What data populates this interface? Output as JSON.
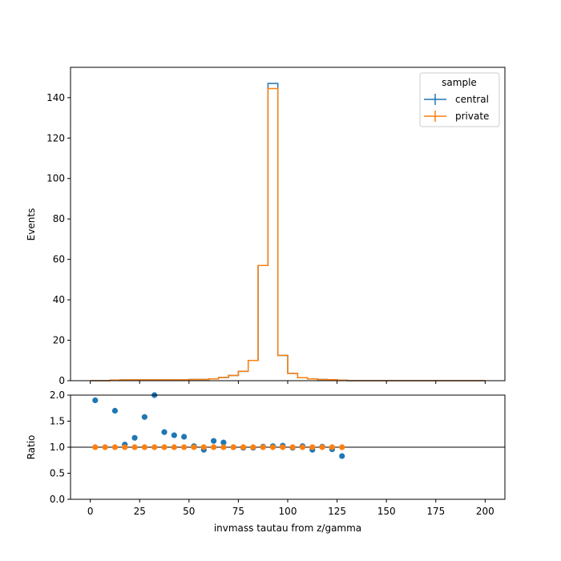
{
  "chart_data": [
    {
      "type": "step",
      "xlabel": "",
      "ylabel": "Events",
      "xlim": [
        -10,
        210
      ],
      "ylim": [
        0,
        155
      ],
      "yticks": [
        0,
        20,
        40,
        60,
        80,
        100,
        120,
        140
      ],
      "xticks": [
        0,
        25,
        50,
        75,
        100,
        125,
        150,
        175,
        200
      ],
      "bin_edges": [
        0,
        5,
        10,
        15,
        20,
        25,
        30,
        35,
        40,
        45,
        50,
        55,
        60,
        65,
        70,
        75,
        80,
        85,
        90,
        95,
        100,
        105,
        110,
        115,
        120,
        125,
        130,
        135,
        140,
        145,
        150,
        155,
        160,
        165,
        170,
        175,
        180,
        185,
        190,
        195,
        200
      ],
      "legend": {
        "title": "sample",
        "placement": "top-right"
      },
      "series": [
        {
          "name": "central",
          "color": "#1f77b4",
          "values": [
            0,
            0,
            0.3,
            0.4,
            0.4,
            0.4,
            0.4,
            0.4,
            0.4,
            0.4,
            0.6,
            0.6,
            0.9,
            1.6,
            2.6,
            4.6,
            10,
            57,
            147,
            12.5,
            3.6,
            1.5,
            0.9,
            0.6,
            0.5,
            0.2,
            0,
            0,
            0,
            0,
            0,
            0,
            0,
            0,
            0,
            0,
            0,
            0,
            0,
            0
          ]
        },
        {
          "name": "private",
          "color": "#ff7f0e",
          "values": [
            0,
            0,
            0.3,
            0.4,
            0.4,
            0.4,
            0.4,
            0.4,
            0.4,
            0.4,
            0.6,
            0.6,
            0.9,
            1.6,
            2.6,
            4.6,
            10,
            57,
            144.5,
            12.5,
            3.6,
            1.5,
            0.9,
            0.6,
            0.5,
            0.2,
            0,
            0,
            0,
            0,
            0,
            0,
            0,
            0,
            0,
            0,
            0,
            0,
            0,
            0
          ]
        }
      ]
    },
    {
      "type": "scatter",
      "xlabel": "invmass tautau from z/gamma",
      "ylabel": "Ratio",
      "xlim": [
        -10,
        210
      ],
      "ylim": [
        0,
        2
      ],
      "yticks": [
        "0.0",
        "0.5",
        "1.0",
        "1.5",
        "2.0"
      ],
      "xticks": [
        0,
        25,
        50,
        75,
        100,
        125,
        150,
        175,
        200
      ],
      "reference_line": 1.0,
      "series": [
        {
          "name": "central",
          "color": "#1f77b4",
          "x": [
            2.5,
            12.5,
            17.5,
            22.5,
            27.5,
            32.5,
            37.5,
            42.5,
            47.5,
            52.5,
            57.5,
            62.5,
            67.5,
            72.5,
            77.5,
            82.5,
            87.5,
            92.5,
            97.5,
            102.5,
            107.5,
            112.5,
            117.5,
            122.5,
            127.5
          ],
          "y": [
            1.9,
            1.7,
            1.05,
            1.18,
            1.58,
            2.0,
            1.29,
            1.23,
            1.2,
            1.02,
            0.95,
            1.12,
            1.09,
            1.0,
            0.99,
            0.99,
            1.01,
            1.02,
            1.03,
            0.99,
            1.02,
            0.95,
            1.01,
            0.96,
            0.83
          ]
        },
        {
          "name": "private",
          "color": "#ff7f0e",
          "x": [
            2.5,
            7.5,
            12.5,
            17.5,
            22.5,
            27.5,
            32.5,
            37.5,
            42.5,
            47.5,
            52.5,
            57.5,
            62.5,
            67.5,
            72.5,
            77.5,
            82.5,
            87.5,
            92.5,
            97.5,
            102.5,
            107.5,
            112.5,
            117.5,
            122.5,
            127.5
          ],
          "y": [
            1,
            1,
            1,
            1,
            1,
            1,
            1,
            1,
            1,
            1,
            1,
            1,
            1,
            1,
            1,
            1,
            1,
            1,
            1,
            1,
            1,
            1,
            1,
            1,
            1,
            1
          ]
        }
      ]
    }
  ]
}
